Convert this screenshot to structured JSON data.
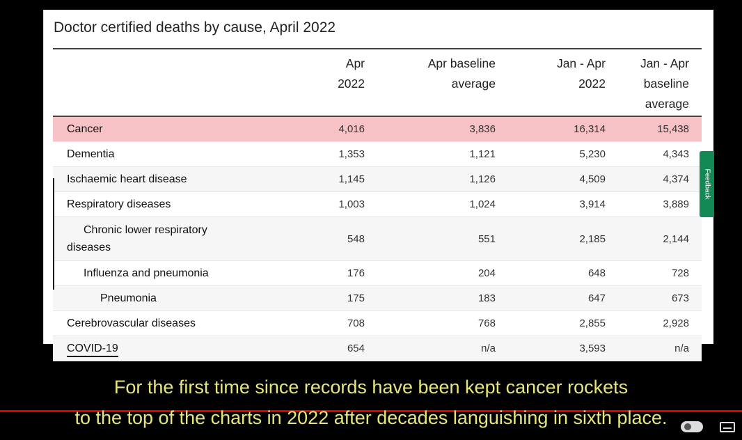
{
  "table_title": "Doctor certified deaths by cause, April 2022",
  "headers": [
    {
      "line1": "",
      "line2": ""
    },
    {
      "line1": "Apr",
      "line2": "2022"
    },
    {
      "line1": "Apr baseline",
      "line2": "average"
    },
    {
      "line1": "Jan - Apr",
      "line2": "2022"
    },
    {
      "line1": "Jan - Apr baseline",
      "line2": "average"
    }
  ],
  "rows": [
    {
      "label": "Cancer",
      "apr_2022": "4,016",
      "apr_baseline": "3,836",
      "jan_apr_2022": "16,314",
      "jan_apr_baseline": "15,438"
    },
    {
      "label": "Dementia",
      "apr_2022": "1,353",
      "apr_baseline": "1,121",
      "jan_apr_2022": "5,230",
      "jan_apr_baseline": "4,343"
    },
    {
      "label": "Ischaemic heart disease",
      "apr_2022": "1,145",
      "apr_baseline": "1,126",
      "jan_apr_2022": "4,509",
      "jan_apr_baseline": "4,374"
    },
    {
      "label": "Respiratory diseases",
      "apr_2022": "1,003",
      "apr_baseline": "1,024",
      "jan_apr_2022": "3,914",
      "jan_apr_baseline": "3,889"
    },
    {
      "label": "Chronic lower respiratory diseases",
      "label_line1": "Chronic lower respiratory",
      "label_line2": "diseases",
      "apr_2022": "548",
      "apr_baseline": "551",
      "jan_apr_2022": "2,185",
      "jan_apr_baseline": "2,144"
    },
    {
      "label": "Influenza and pneumonia",
      "apr_2022": "176",
      "apr_baseline": "204",
      "jan_apr_2022": "648",
      "jan_apr_baseline": "728"
    },
    {
      "label": "Pneumonia",
      "apr_2022": "175",
      "apr_baseline": "183",
      "jan_apr_2022": "647",
      "jan_apr_baseline": "673"
    },
    {
      "label": "Cerebrovascular diseases",
      "apr_2022": "708",
      "apr_baseline": "768",
      "jan_apr_2022": "2,855",
      "jan_apr_baseline": "2,928"
    },
    {
      "label": "COVID-19",
      "apr_2022": "654",
      "apr_baseline": "n/a",
      "jan_apr_2022": "3,593",
      "jan_apr_baseline": "n/a"
    }
  ],
  "highlight_color": "#f6c2c5",
  "feedback_tab": {
    "label": "Feedback",
    "color": "#138a56"
  },
  "captions": {
    "line1": "For the first time since records have been kept cancer rockets",
    "line2": "to the top of the charts in 2022 after decades languishing in sixth place."
  },
  "player": {
    "progress_color": "#dd0000",
    "pause_icon": "pause-toggle-icon",
    "cc_icon": "subtitles-icon"
  }
}
